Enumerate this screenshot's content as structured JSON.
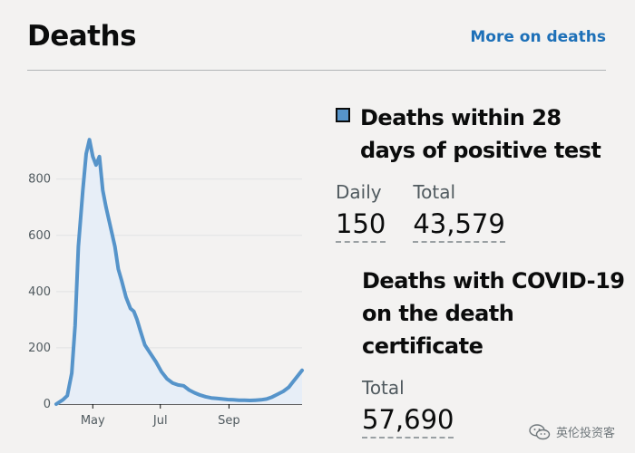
{
  "header": {
    "title": "Deaths",
    "more_link": "More on deaths"
  },
  "metric1": {
    "title": "Deaths within 28 days of positive test",
    "daily_label": "Daily",
    "daily_value": "150",
    "total_label": "Total",
    "total_value": "43,579",
    "legend_color": "#5694ca"
  },
  "metric2": {
    "title": "Deaths with COVID-19 on the death certificate",
    "total_label": "Total",
    "total_value": "57,690"
  },
  "watermark": {
    "text": "英伦投资客",
    "icon": "wechat-icon"
  },
  "chart_data": {
    "type": "area",
    "xlabel": "",
    "ylabel": "",
    "x_ticks": [
      "May",
      "Jul",
      "Sep"
    ],
    "y_ticks": [
      0,
      200,
      400,
      600,
      800
    ],
    "ylim": [
      0,
      960
    ],
    "x_range_days": [
      0,
      222
    ],
    "grid": true,
    "line_color": "#5694ca",
    "fill_color": "#e7eef7",
    "series": [
      {
        "points": [
          [
            0,
            0
          ],
          [
            6,
            15
          ],
          [
            10,
            30
          ],
          [
            14,
            110
          ],
          [
            17,
            280
          ],
          [
            20,
            560
          ],
          [
            24,
            760
          ],
          [
            27,
            890
          ],
          [
            30,
            940
          ],
          [
            33,
            880
          ],
          [
            36,
            850
          ],
          [
            39,
            880
          ],
          [
            42,
            760
          ],
          [
            45,
            700
          ],
          [
            49,
            630
          ],
          [
            53,
            560
          ],
          [
            56,
            480
          ],
          [
            59,
            440
          ],
          [
            63,
            380
          ],
          [
            67,
            340
          ],
          [
            70,
            330
          ],
          [
            73,
            300
          ],
          [
            76,
            260
          ],
          [
            80,
            210
          ],
          [
            85,
            180
          ],
          [
            90,
            150
          ],
          [
            95,
            115
          ],
          [
            100,
            90
          ],
          [
            105,
            75
          ],
          [
            110,
            68
          ],
          [
            115,
            65
          ],
          [
            120,
            50
          ],
          [
            125,
            40
          ],
          [
            130,
            32
          ],
          [
            135,
            26
          ],
          [
            140,
            22
          ],
          [
            145,
            20
          ],
          [
            150,
            18
          ],
          [
            155,
            16
          ],
          [
            160,
            15
          ],
          [
            165,
            14
          ],
          [
            170,
            14
          ],
          [
            175,
            13
          ],
          [
            180,
            14
          ],
          [
            185,
            15
          ],
          [
            190,
            18
          ],
          [
            195,
            25
          ],
          [
            200,
            35
          ],
          [
            205,
            45
          ],
          [
            210,
            60
          ],
          [
            214,
            80
          ],
          [
            218,
            100
          ],
          [
            222,
            120
          ]
        ]
      }
    ]
  }
}
